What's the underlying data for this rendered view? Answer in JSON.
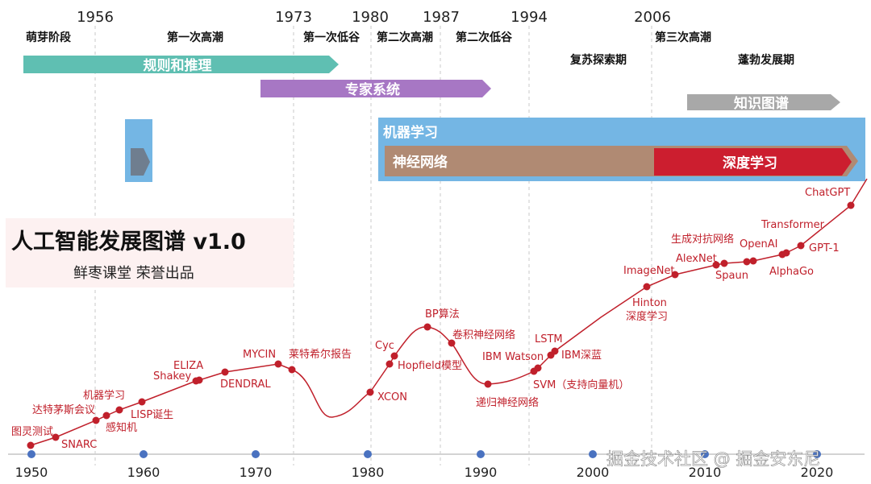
{
  "top_years": [
    "1956",
    "1973",
    "1980",
    "1987",
    "1994",
    "2006"
  ],
  "phases": {
    "p1": "萌芽阶段",
    "p2": "第一次高潮",
    "p3": "第一次低谷",
    "p4": "第二次高潮",
    "p5": "第二次低谷",
    "p6": "复苏探索期",
    "p7": "第三次高潮",
    "p8": "蓬勃发展期"
  },
  "bands": {
    "rules": "规则和推理",
    "expert": "专家系统",
    "kg": "知识图谱",
    "ml": "机器学习",
    "nn": "神经网络",
    "dl": "深度学习"
  },
  "title": {
    "main": "人工智能发展图谱 v1.0",
    "sub": "鲜枣课堂 荣誉出品"
  },
  "events": {
    "turing": "图灵测试",
    "snarc": "SNARC",
    "dartmouth": "达特茅斯会议",
    "ml_term": "机器学习",
    "perceptron": "感知机",
    "lisp": "LISP诞生",
    "eliza": "ELIZA",
    "shakey": "Shakey",
    "dendral": "DENDRAL",
    "mycin": "MYCIN",
    "lighthill": "莱特希尔报告",
    "xcon": "XCON",
    "cyc": "Cyc",
    "hopfield": "Hopfield模型",
    "bp": "BP算法",
    "cnn": "卷积神经网络",
    "rnn": "递归神经网络",
    "ibm_watson": "IBM Watson",
    "lstm": "LSTM",
    "ibm_deep_blue": "IBM深蓝",
    "svm": "SVM（支持向量机）",
    "hinton_1": "Hinton",
    "hinton_2": "深度学习",
    "imagenet": "ImageNet",
    "alexnet": "AlexNet",
    "gan": "生成对抗网络",
    "spaun": "Spaun",
    "openai": "OpenAI",
    "transformer": "Transformer",
    "alphago": "AlphaGo",
    "gpt1": "GPT-1",
    "chatgpt": "ChatGPT"
  },
  "axis_years": [
    "1950",
    "1960",
    "1970",
    "1980",
    "1990",
    "2000",
    "2010",
    "2020"
  ],
  "watermark": "掘金技术社区 @ 掘金安东尼",
  "colors": {
    "curve": "#c0202b",
    "rules": "#5fbfb2",
    "expert": "#a777c4",
    "kg": "#a8a8a8",
    "ml": "#74b6e4",
    "nn": "#b08a73",
    "dl": "#cc1e2f",
    "axis_dot": "#4a72c0"
  }
}
